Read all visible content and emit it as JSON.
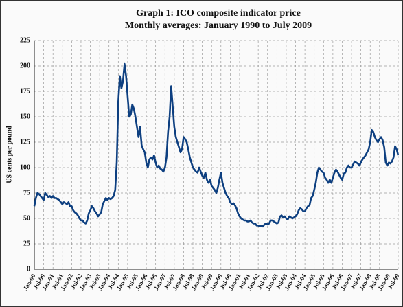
{
  "chart_data": {
    "type": "line",
    "title": "Graph 1: ICO composite indicator price",
    "subtitle": "Monthly averages:  January 1990 to July 2009",
    "y_label": "US cents per pound",
    "ylim": [
      0,
      225
    ],
    "yticks": [
      0,
      25,
      50,
      75,
      100,
      125,
      150,
      175,
      200,
      225
    ],
    "grid": true,
    "categories": [
      "Jan-90",
      null,
      null,
      null,
      null,
      null,
      "Jul-90",
      null,
      null,
      null,
      null,
      null,
      "Jan-91",
      null,
      null,
      null,
      null,
      null,
      "Jul-91",
      null,
      null,
      null,
      null,
      null,
      "Jan-92",
      null,
      null,
      null,
      null,
      null,
      "Jul-92",
      null,
      null,
      null,
      null,
      null,
      "Jan-93",
      null,
      null,
      null,
      null,
      null,
      "Jul-93",
      null,
      null,
      null,
      null,
      null,
      "Jan-94",
      null,
      null,
      null,
      null,
      null,
      "Jul-94",
      null,
      null,
      null,
      null,
      null,
      "Jan-95",
      null,
      null,
      null,
      null,
      null,
      "Jul-95",
      null,
      null,
      null,
      null,
      null,
      "Jan-96",
      null,
      null,
      null,
      null,
      null,
      "Jul-96",
      null,
      null,
      null,
      null,
      null,
      "Jan-97",
      null,
      null,
      null,
      null,
      null,
      "Jul-97",
      null,
      null,
      null,
      null,
      null,
      "Jan-98",
      null,
      null,
      null,
      null,
      null,
      "Jul-98",
      null,
      null,
      null,
      null,
      null,
      "Jan-99",
      null,
      null,
      null,
      null,
      null,
      "Jul-99",
      null,
      null,
      null,
      null,
      null,
      "Jan-00",
      null,
      null,
      null,
      null,
      null,
      "Jul-00",
      null,
      null,
      null,
      null,
      null,
      "Jan-01",
      null,
      null,
      null,
      null,
      null,
      "Jul-01",
      null,
      null,
      null,
      null,
      null,
      "Jan-02",
      null,
      null,
      null,
      null,
      null,
      "Jul-02",
      null,
      null,
      null,
      null,
      null,
      "Jan-03",
      null,
      null,
      null,
      null,
      null,
      "Jul-03",
      null,
      null,
      null,
      null,
      null,
      "Jan-04",
      null,
      null,
      null,
      null,
      null,
      "Jul-04",
      null,
      null,
      null,
      null,
      null,
      "Jan-05",
      null,
      null,
      null,
      null,
      null,
      "Jul-05",
      null,
      null,
      null,
      null,
      null,
      "Jan-06",
      null,
      null,
      null,
      null,
      null,
      "Jul-06",
      null,
      null,
      null,
      null,
      null,
      "Jan-07",
      null,
      null,
      null,
      null,
      null,
      "Jul-07",
      null,
      null,
      null,
      null,
      null,
      "Jan-08",
      null,
      null,
      null,
      null,
      null,
      "Jul-08",
      null,
      null,
      null,
      null,
      null,
      "Jan-09",
      null,
      null,
      null,
      null,
      null,
      "Jul-09"
    ],
    "series": [
      {
        "color": "#0d3f80",
        "values": [
          62,
          70,
          75,
          74,
          72,
          70,
          68,
          75,
          73,
          71,
          72,
          70,
          72,
          70,
          70,
          69,
          68,
          66,
          64,
          66,
          65,
          64,
          66,
          62,
          62,
          58,
          56,
          55,
          53,
          50,
          48,
          48,
          46,
          45,
          48,
          55,
          58,
          62,
          60,
          57,
          55,
          52,
          54,
          56,
          64,
          67,
          70,
          68,
          70,
          69,
          70,
          72,
          78,
          105,
          165,
          190,
          178,
          185,
          202,
          190,
          170,
          150,
          152,
          162,
          158,
          150,
          140,
          130,
          140,
          122,
          118,
          115,
          105,
          100,
          108,
          110,
          108,
          112,
          105,
          100,
          102,
          99,
          98,
          96,
          100,
          110,
          135,
          150,
          180,
          160,
          140,
          130,
          125,
          120,
          115,
          118,
          130,
          128,
          125,
          118,
          110,
          105,
          100,
          98,
          96,
          95,
          100,
          96,
          92,
          90,
          95,
          88,
          85,
          88,
          82,
          80,
          78,
          75,
          80,
          88,
          95,
          85,
          80,
          75,
          72,
          70,
          66,
          64,
          65,
          63,
          60,
          55,
          52,
          50,
          49,
          48,
          48,
          47,
          47,
          48,
          46,
          45,
          45,
          43,
          43,
          42,
          43,
          42,
          44,
          45,
          44,
          45,
          48,
          48,
          47,
          46,
          45,
          46,
          52,
          53,
          51,
          52,
          50,
          49,
          52,
          51,
          50,
          51,
          52,
          54,
          58,
          60,
          59,
          57,
          57,
          60,
          62,
          63,
          70,
          72,
          78,
          85,
          95,
          100,
          98,
          96,
          95,
          90,
          88,
          85,
          88,
          85,
          90,
          95,
          98,
          96,
          93,
          90,
          88,
          94,
          95,
          100,
          102,
          100,
          100,
          103,
          106,
          105,
          104,
          102,
          105,
          108,
          110,
          112,
          115,
          118,
          125,
          137,
          135,
          130,
          127,
          125,
          128,
          130,
          127,
          120,
          105,
          102,
          105,
          104,
          106,
          110,
          121,
          118,
          112
        ]
      }
    ]
  }
}
